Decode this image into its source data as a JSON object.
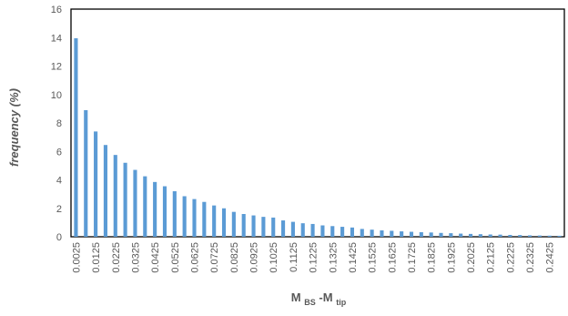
{
  "chart_data": {
    "type": "bar",
    "title": "",
    "xlabel_main": "M",
    "xlabel_sub1": "BS",
    "xlabel_dash": "-M",
    "xlabel_sub2": "tip",
    "ylabel": "frequency (%)",
    "ylim": [
      0,
      16
    ],
    "yticks": [
      0,
      2,
      4,
      6,
      8,
      10,
      12,
      14,
      16
    ],
    "bar_color": "#5b9bd5",
    "grid": false,
    "x": [
      0.0025,
      0.0075,
      0.0125,
      0.0175,
      0.0225,
      0.0275,
      0.0325,
      0.0375,
      0.0425,
      0.0475,
      0.0525,
      0.0575,
      0.0625,
      0.0675,
      0.0725,
      0.0775,
      0.0825,
      0.0875,
      0.0925,
      0.0975,
      0.1025,
      0.1075,
      0.1125,
      0.1175,
      0.1225,
      0.1275,
      0.1325,
      0.1375,
      0.1425,
      0.1475,
      0.1525,
      0.1575,
      0.1625,
      0.1675,
      0.1725,
      0.1775,
      0.1825,
      0.1875,
      0.1925,
      0.1975,
      0.2025,
      0.2075,
      0.2125,
      0.2175,
      0.2225,
      0.2275,
      0.2325,
      0.2375,
      0.2425,
      0.2475
    ],
    "xtick_labels": [
      "0.0025",
      "0.0125",
      "0.0225",
      "0.0325",
      "0.0425",
      "0.0525",
      "0.0625",
      "0.0725",
      "0.0825",
      "0.0925",
      "0.1025",
      "0.1125",
      "0.1225",
      "0.1325",
      "0.1425",
      "0.1525",
      "0.1625",
      "0.1725",
      "0.1825",
      "0.1925",
      "0.2025",
      "0.2125",
      "0.2225",
      "0.2325",
      "0.2425"
    ],
    "values": [
      13.95,
      8.9,
      7.4,
      6.45,
      5.75,
      5.2,
      4.7,
      4.25,
      3.85,
      3.55,
      3.2,
      2.85,
      2.65,
      2.45,
      2.2,
      2.0,
      1.75,
      1.6,
      1.5,
      1.4,
      1.35,
      1.15,
      1.05,
      0.95,
      0.9,
      0.8,
      0.75,
      0.7,
      0.65,
      0.55,
      0.5,
      0.45,
      0.42,
      0.38,
      0.35,
      0.32,
      0.3,
      0.27,
      0.25,
      0.22,
      0.2,
      0.18,
      0.16,
      0.15,
      0.13,
      0.12,
      0.1,
      0.09,
      0.08,
      0.07
    ]
  }
}
